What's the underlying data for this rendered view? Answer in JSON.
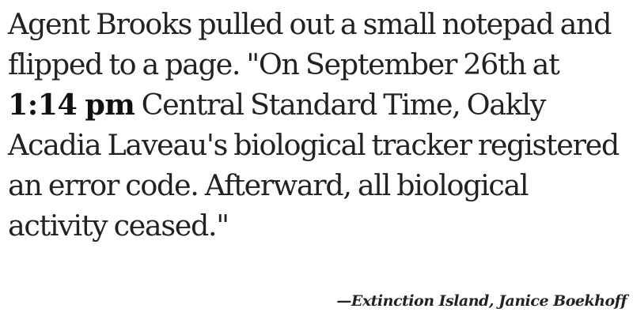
{
  "quote": {
    "segments": [
      {
        "text": "Agent Brooks pulled out a small notepad and flipped to a page. \"On September 26th at ",
        "emphasis": false
      },
      {
        "text": "1:14 pm",
        "emphasis": true
      },
      {
        "text": " Central Standard Time, Oakly Acadia Laveau's biological tracker registered an error code. Afterward, all biological activity ceased.\"",
        "emphasis": false
      }
    ]
  },
  "attribution": {
    "text": "—Extinction Island, Janice Boekhoff"
  }
}
